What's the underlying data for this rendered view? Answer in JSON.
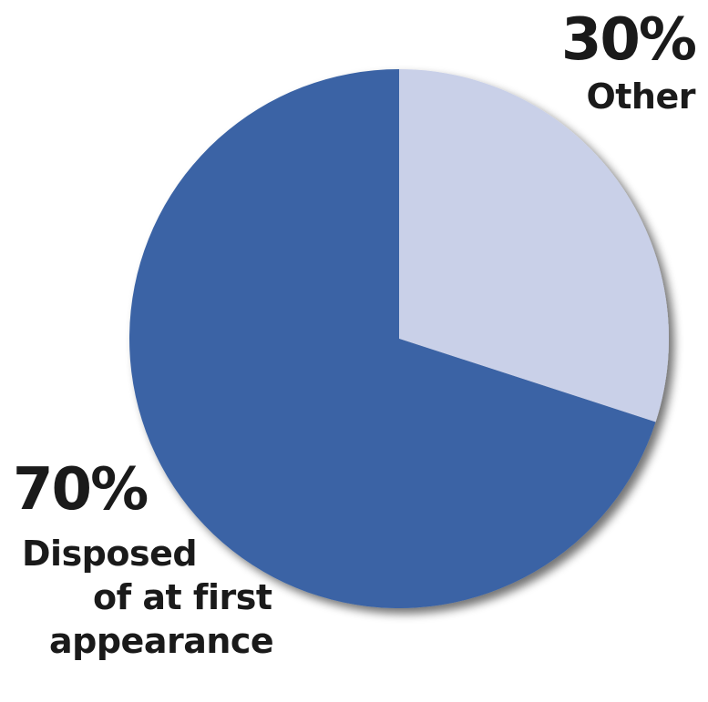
{
  "chart_data": {
    "type": "pie",
    "slices": [
      {
        "label": "Other",
        "value": 30,
        "percent_label": "30%",
        "color": "#c9d0e8"
      },
      {
        "label": "Disposed of at first appearance",
        "label_lines": [
          "Disposed",
          "of at first",
          "appearance"
        ],
        "value": 70,
        "percent_label": "70%",
        "color": "#3a63a5"
      }
    ],
    "start": "top (12 o'clock), clockwise",
    "legend": "none",
    "data_labels": "outside slices"
  }
}
